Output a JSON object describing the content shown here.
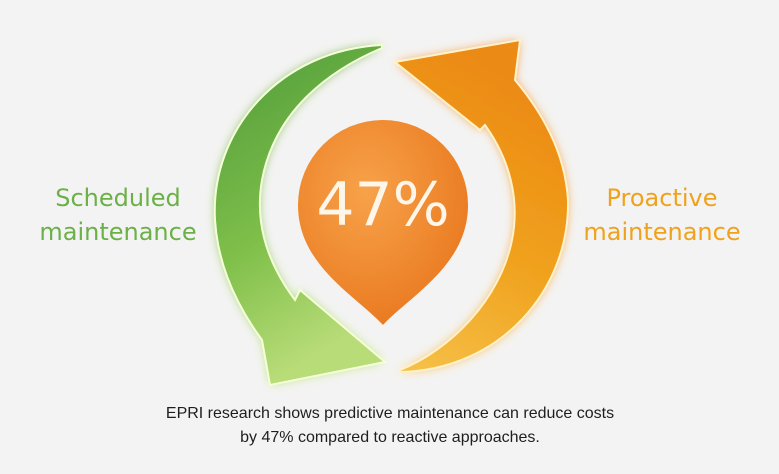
{
  "left_label": [
    "Scheduled",
    "maintenance"
  ],
  "right_label": [
    "Proactive",
    "maintenance"
  ],
  "center": "47%",
  "caption": [
    "EPRI research shows predictive maintenance can reduce costs",
    "by 47% compared to reactive approaches."
  ]
}
